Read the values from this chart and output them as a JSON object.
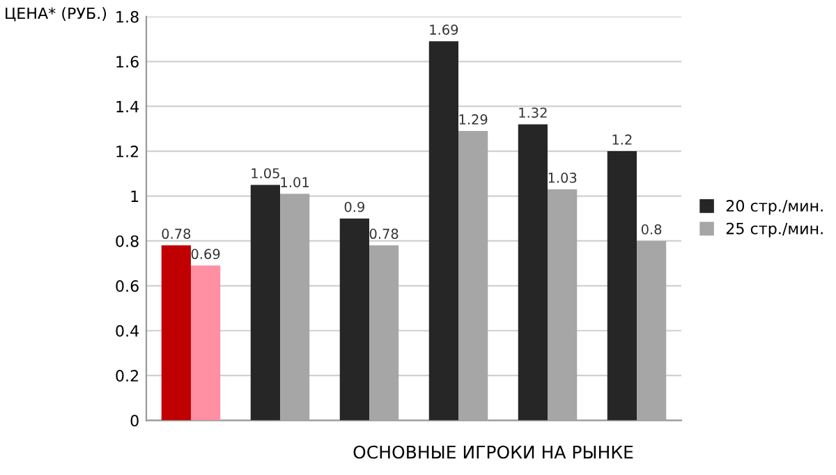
{
  "chart_data": {
    "type": "bar",
    "ylabel": "ЦЕНА* (РУБ.)",
    "xlabel": "ОСНОВНЫЕ ИГРОКИ НА РЫНКЕ",
    "categories": [
      null,
      null,
      null,
      null,
      null,
      null
    ],
    "series": [
      {
        "name": "20 стр./мин.",
        "color": "#262626",
        "colors": [
          "#c00000",
          "#262626",
          "#262626",
          "#262626",
          "#262626",
          "#262626"
        ],
        "values": [
          0.78,
          1.05,
          0.9,
          1.69,
          1.32,
          1.2
        ]
      },
      {
        "name": "25 стр./мин.",
        "color": "#a6a6a6",
        "colors": [
          "#ff8fa3",
          "#a6a6a6",
          "#a6a6a6",
          "#a6a6a6",
          "#a6a6a6",
          "#a6a6a6"
        ],
        "values": [
          0.69,
          1.01,
          0.78,
          1.29,
          1.03,
          0.8
        ]
      }
    ],
    "ylim": [
      0,
      1.8
    ],
    "yticks": [
      0,
      0.2,
      0.4,
      0.6,
      0.8,
      1,
      1.2,
      1.4,
      1.6,
      1.8
    ],
    "grid": "y",
    "legend": "right",
    "data_labels": true
  }
}
